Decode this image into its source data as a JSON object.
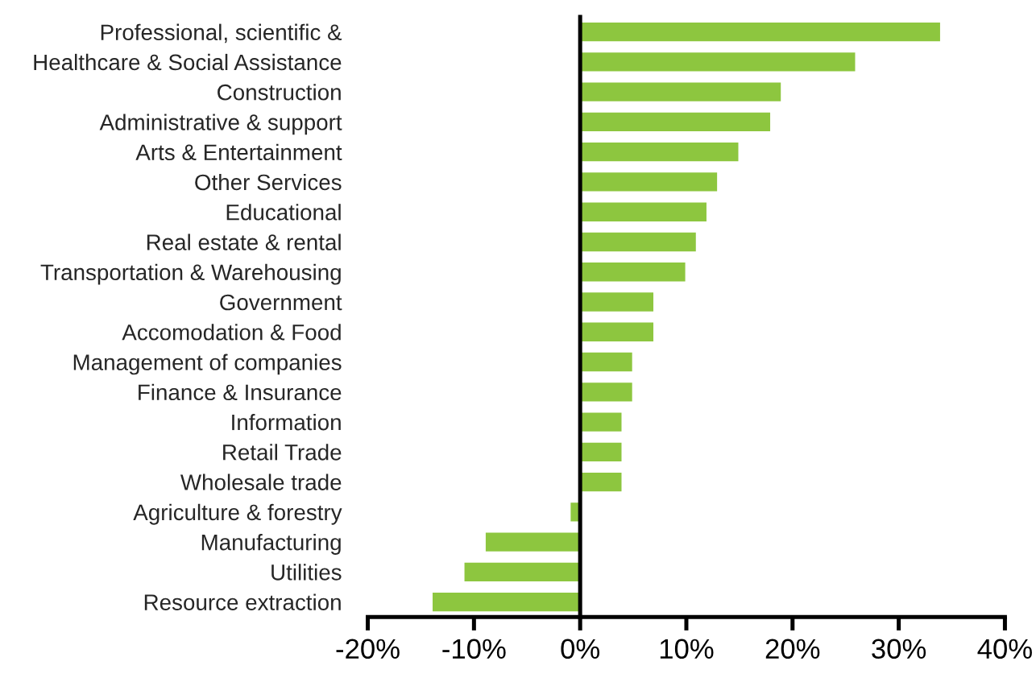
{
  "chart_data": {
    "type": "bar",
    "orientation": "horizontal",
    "categories": [
      "Professional, scientific &",
      "Healthcare & Social Assistance",
      "Construction",
      "Administrative & support",
      "Arts & Entertainment",
      "Other Services",
      "Educational",
      "Real estate & rental",
      "Transportation & Warehousing",
      "Government",
      "Accomodation & Food",
      "Management of companies",
      "Finance & Insurance",
      "Information",
      "Retail Trade",
      "Wholesale trade",
      "Agriculture & forestry",
      "Manufacturing",
      "Utilities",
      "Resource extraction"
    ],
    "values": [
      34,
      26,
      19,
      18,
      15,
      13,
      12,
      11,
      10,
      7,
      7,
      5,
      5,
      4,
      4,
      4,
      -1,
      -9,
      -11,
      -14
    ],
    "color": "#8dc63f",
    "xlim": [
      -20,
      40
    ],
    "xticks": [
      {
        "value": -20,
        "label": "-20%"
      },
      {
        "value": -10,
        "label": "-10%"
      },
      {
        "value": 0,
        "label": "0%"
      },
      {
        "value": 10,
        "label": "10%"
      },
      {
        "value": 20,
        "label": "20%"
      },
      {
        "value": 30,
        "label": "30%"
      },
      {
        "value": 40,
        "label": "40%"
      }
    ],
    "legend": false
  }
}
